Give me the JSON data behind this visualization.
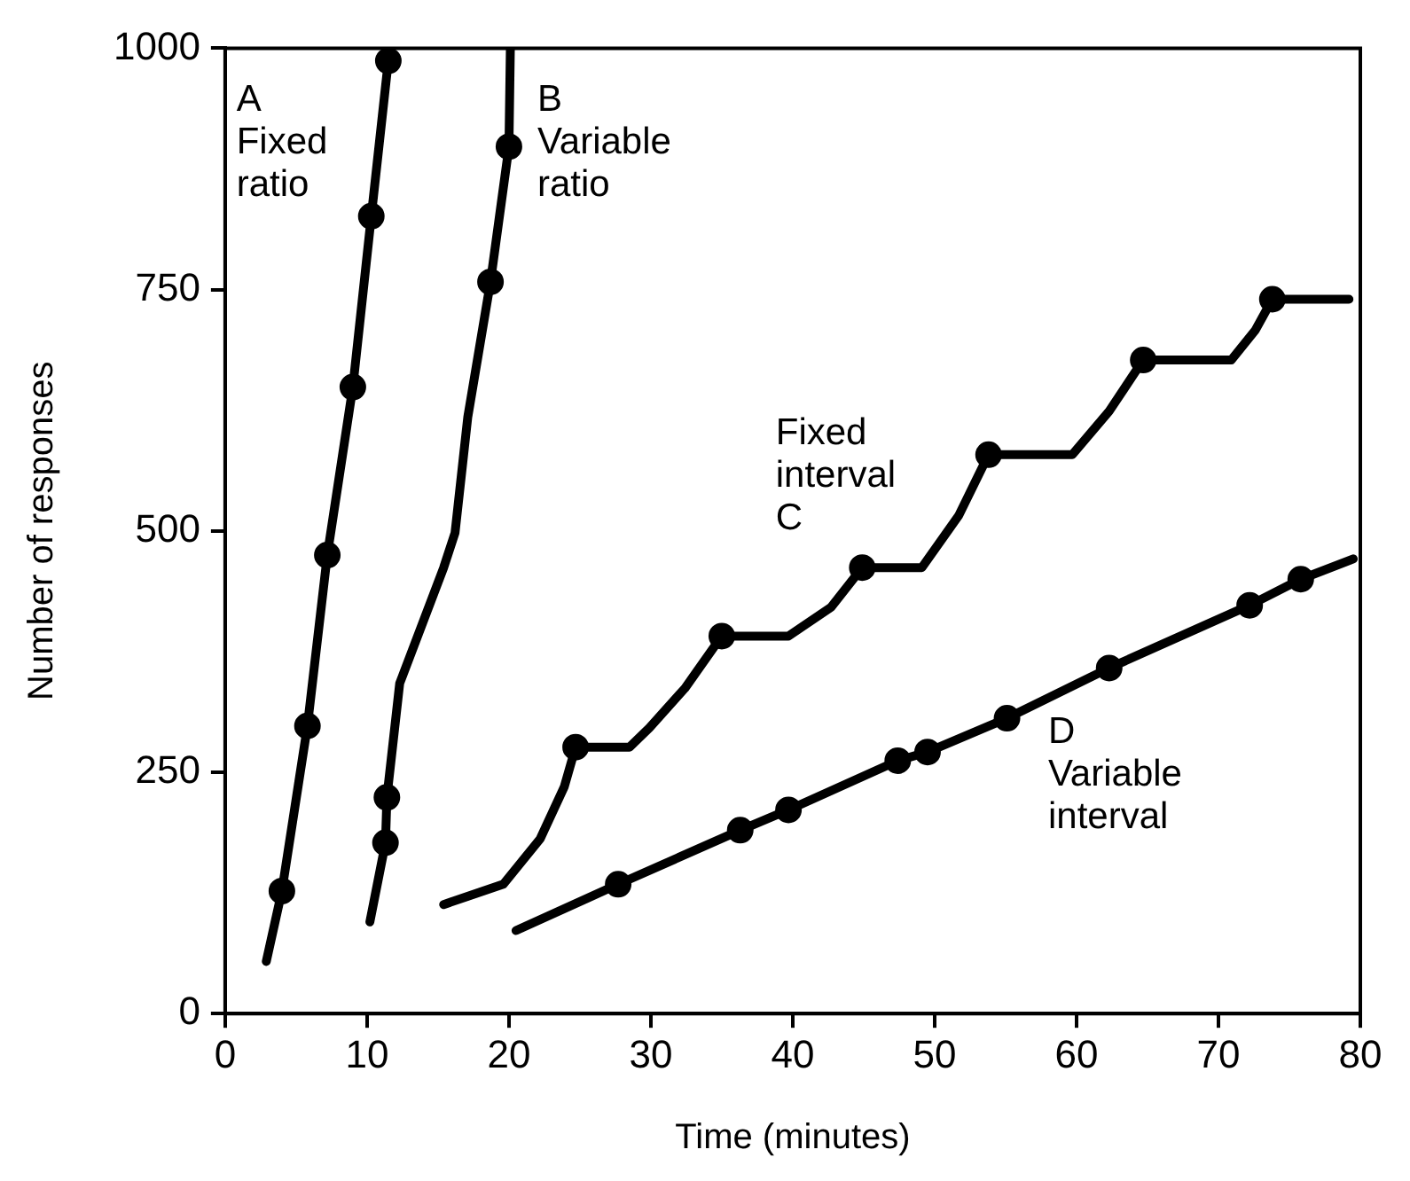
{
  "chart_data": {
    "type": "line",
    "xlabel": "Time (minutes)",
    "ylabel": "Number of responses",
    "xlim": [
      0,
      80
    ],
    "xticks": [
      0,
      10,
      20,
      30,
      40,
      50,
      60,
      70,
      80
    ],
    "ylim": [
      0,
      1000
    ],
    "yticks": [
      0,
      250,
      500,
      750,
      1000
    ],
    "grid": false,
    "legend": false,
    "line_style": "solid",
    "series": [
      {
        "type": "line",
        "color": "#000000",
        "marker": "none",
        "x": [
          2.9,
          4.0,
          5.8,
          7.2,
          9.0,
          10.3,
          11.5,
          11.6
        ],
        "values": [
          54,
          127,
          298,
          475,
          649,
          826,
          987,
          1000
        ]
      },
      {
        "type": "scatter",
        "color": "#000000",
        "marker": "circle",
        "x": [
          4.0,
          5.8,
          7.2,
          9.0,
          10.3,
          11.5
        ],
        "values": [
          127,
          298,
          475,
          649,
          826,
          987
        ]
      },
      {
        "type": "line",
        "color": "#000000",
        "marker": "none",
        "x": [
          10.2,
          11.3,
          11.4,
          12.3,
          15.4,
          16.2,
          17.1,
          18.7,
          20.0,
          20.1
        ],
        "values": [
          95,
          177,
          224,
          342,
          462,
          498,
          618,
          758,
          898,
          1000
        ]
      },
      {
        "type": "scatter",
        "color": "#000000",
        "marker": "circle",
        "x": [
          11.3,
          11.4,
          18.7,
          20.0
        ],
        "values": [
          177,
          224,
          758,
          898
        ]
      },
      {
        "type": "line",
        "color": "#000000",
        "marker": "none",
        "x": [
          15.4,
          19.6,
          22.2,
          23.9,
          24.7,
          28.5,
          29.9,
          32.4,
          35.0,
          39.7,
          42.7,
          44.9,
          49.1,
          51.7,
          53.8,
          59.7,
          62.3,
          64.7,
          70.9,
          72.6,
          73.8,
          79.2
        ],
        "values": [
          113,
          134,
          181,
          235,
          276,
          276,
          296,
          337,
          391,
          391,
          421,
          462,
          462,
          516,
          579,
          579,
          624,
          677,
          677,
          708,
          740,
          740
        ]
      },
      {
        "type": "scatter",
        "color": "#000000",
        "marker": "circle",
        "x": [
          24.7,
          35.0,
          44.9,
          53.8,
          64.7,
          73.8
        ],
        "values": [
          276,
          391,
          462,
          579,
          677,
          740
        ]
      },
      {
        "type": "line",
        "color": "#000000",
        "marker": "none",
        "x": [
          20.5,
          27.7,
          36.3,
          39.7,
          47.4,
          49.5,
          55.1,
          62.3,
          72.2,
          75.8,
          79.5
        ],
        "values": [
          86,
          134,
          190,
          211,
          262,
          271,
          306,
          358,
          423,
          450,
          471
        ]
      },
      {
        "type": "scatter",
        "color": "#000000",
        "marker": "circle",
        "x": [
          27.7,
          36.3,
          39.7,
          47.4,
          49.5,
          55.1,
          62.3,
          72.2,
          75.8
        ],
        "values": [
          134,
          190,
          211,
          262,
          271,
          306,
          358,
          423,
          450
        ]
      }
    ],
    "annotations": [
      "A\nFixed\nratio",
      "B\nVariable\nratio",
      "Fixed\ninterval\nC",
      "D\nVariable\ninterval"
    ]
  }
}
